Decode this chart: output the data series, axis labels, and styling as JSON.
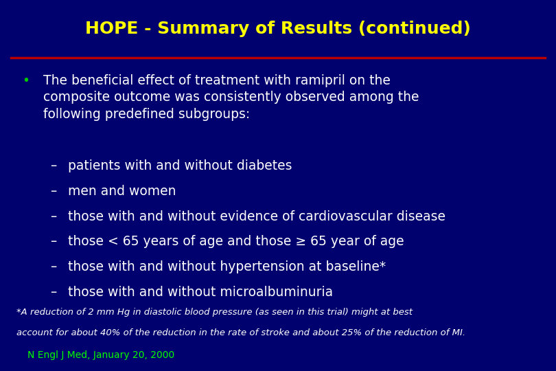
{
  "title": "HOPE - Summary of Results (continued)",
  "title_color": "#FFFF00",
  "bg_color": "#00006E",
  "separator_color": "#BB0000",
  "bullet_color": "#00CC00",
  "body_text_color": "#FFFFFF",
  "footnote_color": "#FFFFFF",
  "citation_color": "#00FF00",
  "bullet_text": "The beneficial effect of treatment with ramipril on the\ncomposite outcome was consistently observed among the\nfollowing predefined subgroups:",
  "sub_bullets": [
    "patients with and without diabetes",
    "men and women",
    "those with and without evidence of cardiovascular disease",
    "those < 65 years of age and those ≥ 65 year of age",
    "those with and without hypertension at baseline*",
    "those with and without microalbuminuria"
  ],
  "footnote_line1": "*A reduction of 2 mm Hg in diastolic blood pressure (as seen in this trial) might at best",
  "footnote_line2": "account for about 40% of the reduction in the rate of stroke and about 25% of the reduction of MI.",
  "citation": "N Engl J Med, January 20, 2000",
  "title_fontsize": 18,
  "body_fontsize": 13.5,
  "subbullet_fontsize": 13.5,
  "footnote_fontsize": 9.5,
  "citation_fontsize": 10
}
